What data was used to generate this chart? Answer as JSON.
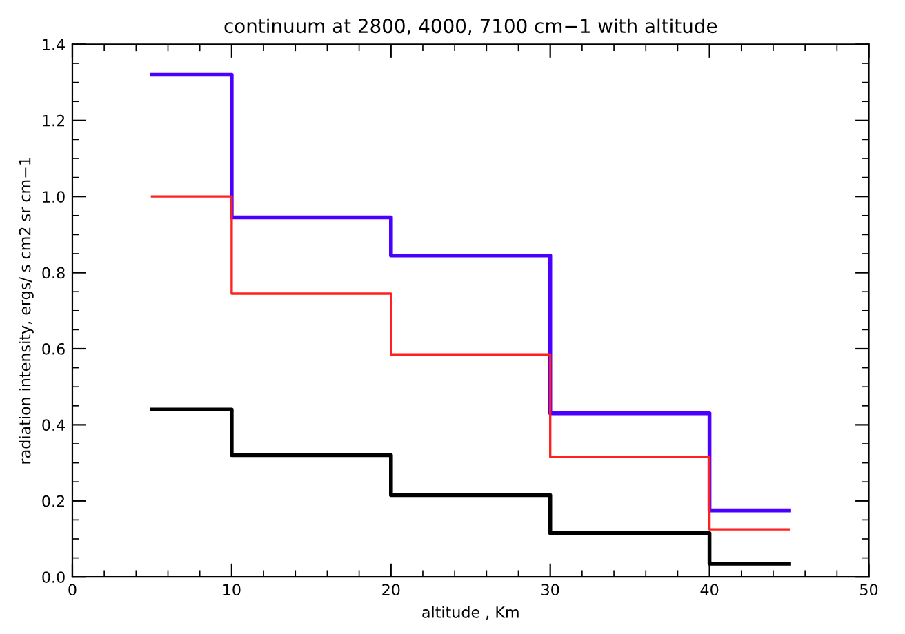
{
  "chart_data": {
    "type": "step",
    "title": "continuum at 2800, 4000, 7100 cm−1 with altitude",
    "xlabel": "altitude , Km",
    "ylabel": "radiation intensity, ergs/ s cm2 sr cm−1",
    "x": [
      5,
      10,
      20,
      30,
      40,
      45
    ],
    "series": [
      {
        "color": "#4b00ff",
        "values": [
          1.32,
          0.945,
          0.845,
          0.43,
          0.175,
          0.175
        ]
      },
      {
        "color": "#ff2020",
        "values": [
          1.0,
          0.745,
          0.585,
          0.315,
          0.125,
          0.125
        ]
      },
      {
        "color": "#000000",
        "values": [
          0.44,
          0.32,
          0.215,
          0.115,
          0.035,
          0.035
        ]
      }
    ],
    "xlim": [
      0,
      50
    ],
    "xticks": [
      0,
      10,
      20,
      30,
      40,
      50
    ],
    "ylim": [
      0,
      1.4
    ],
    "yticks": [
      {
        "value": 0,
        "label": "0.0"
      },
      0.2,
      0.4,
      0.6,
      0.8,
      {
        "value": 1.0,
        "label": "1.0"
      },
      1.2,
      1.4
    ],
    "grid": false
  }
}
